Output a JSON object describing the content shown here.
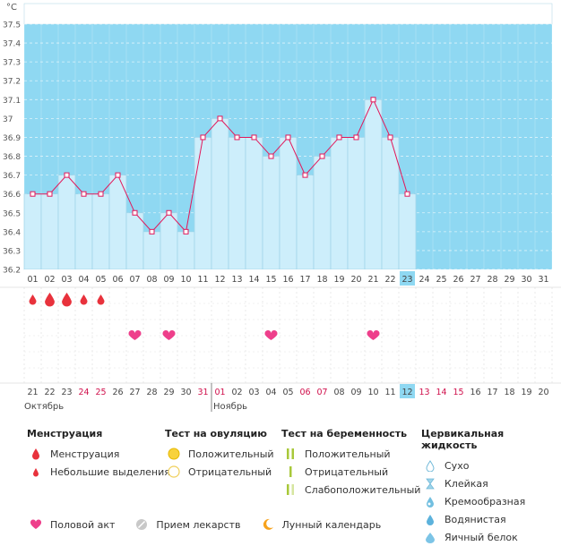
{
  "chart_data": {
    "type": "bar",
    "unit": "°C",
    "ylim": [
      36.2,
      37.6
    ],
    "y_ticks": [
      "36.2",
      "36.3",
      "36.4",
      "36.5",
      "36.6",
      "36.7",
      "36.8",
      "36.9",
      "37",
      "37.1",
      "37.2",
      "37.3",
      "37.4",
      "37.5"
    ],
    "cycle_days": [
      "01",
      "02",
      "03",
      "04",
      "05",
      "06",
      "07",
      "08",
      "09",
      "10",
      "11",
      "12",
      "13",
      "14",
      "15",
      "16",
      "17",
      "18",
      "19",
      "20",
      "21",
      "22",
      "23",
      "24",
      "25",
      "26",
      "27",
      "28",
      "29",
      "30",
      "31"
    ],
    "temperatures": [
      36.6,
      36.6,
      36.7,
      36.6,
      36.6,
      36.7,
      36.5,
      36.4,
      36.5,
      36.4,
      36.9,
      37.0,
      36.9,
      36.9,
      36.8,
      36.9,
      36.7,
      36.8,
      36.9,
      36.9,
      37.1,
      36.9,
      36.6
    ],
    "current_day_index": 22,
    "date_labels": [
      "21",
      "22",
      "23",
      "24",
      "25",
      "26",
      "27",
      "28",
      "29",
      "30",
      "31",
      "01",
      "02",
      "03",
      "04",
      "05",
      "06",
      "07",
      "08",
      "09",
      "10",
      "11",
      "12",
      "13",
      "14",
      "15",
      "16",
      "17",
      "18",
      "19",
      "20"
    ],
    "weekend_indices": [
      3,
      4,
      10,
      11,
      16,
      17,
      23,
      24,
      25
    ],
    "months": [
      {
        "label": "Октябрь",
        "start_index": 0
      },
      {
        "label": "Ноябрь",
        "start_index": 11
      }
    ],
    "menstruation": [
      {
        "day_index": 0,
        "level": "light"
      },
      {
        "day_index": 1,
        "level": "heavy"
      },
      {
        "day_index": 2,
        "level": "heavy"
      },
      {
        "day_index": 3,
        "level": "light"
      },
      {
        "day_index": 4,
        "level": "light"
      }
    ],
    "intercourse_day_indices": [
      6,
      8,
      14,
      20
    ],
    "colors": {
      "background": "#8fd8f2",
      "bar_fill": "#cdeefb",
      "bar_stroke": "#9ed3e8",
      "line": "#e2175a",
      "drop": "#e8323c",
      "heart": "#ee3f8b",
      "weekend": "#d0104c",
      "current_badge": "#8fd8f2"
    }
  },
  "legend": {
    "menstruation": {
      "title": "Менструация",
      "items": [
        {
          "label": "Менструация",
          "icon": "drop-icon"
        },
        {
          "label": "Небольшие выделения",
          "icon": "small-drop-icon"
        }
      ]
    },
    "ovulation_test": {
      "title": "Тест на овуляцию",
      "items": [
        {
          "label": "Положительный",
          "icon": "filled-circle-icon"
        },
        {
          "label": "Отрицательный",
          "icon": "empty-circle-icon"
        }
      ]
    },
    "pregnancy_test": {
      "title": "Тест на беременность",
      "items": [
        {
          "label": "Положительный",
          "icon": "two-lines-icon"
        },
        {
          "label": "Отрицательный",
          "icon": "one-line-icon"
        },
        {
          "label": "Слабоположительный",
          "icon": "faint-lines-icon"
        }
      ]
    },
    "cervical_fluid": {
      "title": "Цервикальная жидкость",
      "items": [
        {
          "label": "Сухо",
          "icon": "dry-drop-icon"
        },
        {
          "label": "Клейкая",
          "icon": "sticky-icon"
        },
        {
          "label": "Кремообразная",
          "icon": "creamy-drop-icon"
        },
        {
          "label": "Водянистая",
          "icon": "watery-drop-icon"
        },
        {
          "label": "Яичный белок",
          "icon": "egg-white-drop-icon"
        }
      ]
    },
    "bottom": [
      {
        "label": "Половой акт",
        "icon": "heart-icon"
      },
      {
        "label": "Прием лекарств",
        "icon": "pill-icon"
      },
      {
        "label": "Лунный календарь",
        "icon": "moon-icon"
      }
    ]
  }
}
